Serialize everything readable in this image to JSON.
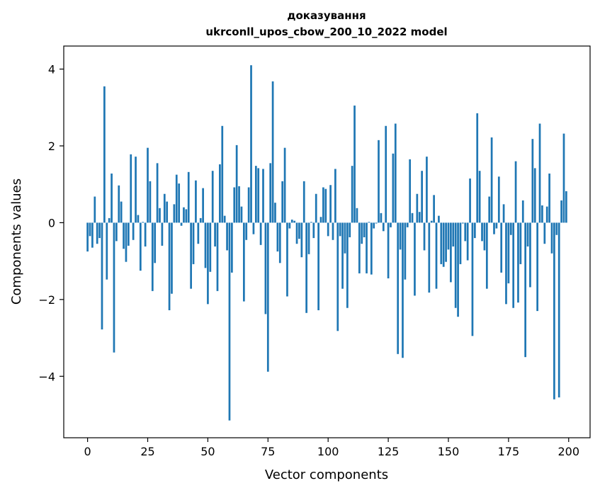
{
  "chart_data": {
    "type": "bar",
    "title": "доказування",
    "subtitle": "ukrconll_upos_cbow_200_10_2022 model",
    "xlabel": "Vector components",
    "ylabel": "Components values",
    "xlim": [
      -9.9,
      208.9
    ],
    "ylim": [
      -5.6,
      4.6
    ],
    "xticks": [
      0,
      25,
      50,
      75,
      100,
      125,
      150,
      175,
      200
    ],
    "xtick_labels": [
      "0",
      "25",
      "50",
      "75",
      "100",
      "125",
      "150",
      "175",
      "200"
    ],
    "yticks": [
      -4,
      -2,
      0,
      2,
      4
    ],
    "ytick_labels": [
      "−4",
      "−2",
      "0",
      "2",
      "4"
    ],
    "bar_color": "#1f77b4",
    "grid": false,
    "x": [
      0,
      1,
      2,
      3,
      4,
      5,
      6,
      7,
      8,
      9,
      10,
      11,
      12,
      13,
      14,
      15,
      16,
      17,
      18,
      19,
      20,
      21,
      22,
      23,
      24,
      25,
      26,
      27,
      28,
      29,
      30,
      31,
      32,
      33,
      34,
      35,
      36,
      37,
      38,
      39,
      40,
      41,
      42,
      43,
      44,
      45,
      46,
      47,
      48,
      49,
      50,
      51,
      52,
      53,
      54,
      55,
      56,
      57,
      58,
      59,
      60,
      61,
      62,
      63,
      64,
      65,
      66,
      67,
      68,
      69,
      70,
      71,
      72,
      73,
      74,
      75,
      76,
      77,
      78,
      79,
      80,
      81,
      82,
      83,
      84,
      85,
      86,
      87,
      88,
      89,
      90,
      91,
      92,
      93,
      94,
      95,
      96,
      97,
      98,
      99,
      100,
      101,
      102,
      103,
      104,
      105,
      106,
      107,
      108,
      109,
      110,
      111,
      112,
      113,
      114,
      115,
      116,
      117,
      118,
      119,
      120,
      121,
      122,
      123,
      124,
      125,
      126,
      127,
      128,
      129,
      130,
      131,
      132,
      133,
      134,
      135,
      136,
      137,
      138,
      139,
      140,
      141,
      142,
      143,
      144,
      145,
      146,
      147,
      148,
      149,
      150,
      151,
      152,
      153,
      154,
      155,
      156,
      157,
      158,
      159,
      160,
      161,
      162,
      163,
      164,
      165,
      166,
      167,
      168,
      169,
      170,
      171,
      172,
      173,
      174,
      175,
      176,
      177,
      178,
      179,
      180,
      181,
      182,
      183,
      184,
      185,
      186,
      187,
      188,
      189,
      190,
      191,
      192,
      193,
      194,
      195,
      196,
      197,
      198,
      199
    ],
    "values": [
      -0.75,
      -0.35,
      -0.65,
      0.68,
      -0.55,
      -0.4,
      -2.78,
      3.55,
      -1.48,
      0.12,
      1.28,
      -3.38,
      -0.48,
      0.97,
      0.55,
      -0.68,
      -1.02,
      -0.6,
      1.78,
      -0.45,
      1.72,
      0.2,
      -1.25,
      0.02,
      -0.62,
      1.95,
      1.08,
      -1.78,
      -1.05,
      1.55,
      0.38,
      -0.6,
      0.75,
      0.55,
      -2.28,
      -1.85,
      0.48,
      1.25,
      1.02,
      -0.08,
      0.4,
      0.35,
      1.32,
      -1.72,
      -1.08,
      1.1,
      -0.55,
      0.12,
      0.9,
      -1.18,
      -2.12,
      -1.28,
      1.35,
      -0.62,
      -1.78,
      1.52,
      2.52,
      0.18,
      -0.72,
      -5.15,
      -1.3,
      0.92,
      2.02,
      0.95,
      0.42,
      -2.05,
      -0.45,
      0.92,
      4.1,
      -0.3,
      1.48,
      1.42,
      -0.58,
      1.4,
      -2.38,
      -3.88,
      1.55,
      3.68,
      0.52,
      -0.75,
      -1.05,
      1.08,
      1.95,
      -1.92,
      -0.15,
      0.08,
      0.05,
      -0.55,
      -0.42,
      -0.9,
      1.08,
      -2.35,
      -0.82,
      0.02,
      -0.4,
      0.75,
      -2.28,
      0.15,
      0.92,
      0.88,
      -0.35,
      0.98,
      -0.45,
      1.4,
      -2.82,
      -0.35,
      -1.72,
      -0.8,
      -2.22,
      -0.38,
      1.48,
      3.05,
      0.38,
      -1.32,
      -0.55,
      -0.38,
      -1.32,
      0.02,
      -1.35,
      -0.15,
      -0.02,
      2.15,
      0.25,
      -0.22,
      2.52,
      -1.45,
      -0.12,
      1.8,
      2.58,
      -3.42,
      -0.7,
      -3.52,
      -1.48,
      -0.12,
      1.65,
      0.25,
      -1.9,
      0.75,
      0.28,
      1.35,
      -0.72,
      1.72,
      -1.82,
      0.05,
      0.72,
      -1.72,
      0.18,
      -1.08,
      -1.15,
      -1.02,
      -0.7,
      -1.55,
      -0.62,
      -2.22,
      -2.45,
      -1.08,
      -0.02,
      -0.48,
      -0.98,
      1.15,
      -2.95,
      -0.4,
      2.85,
      1.35,
      -0.48,
      -0.72,
      -1.72,
      0.68,
      2.22,
      -0.3,
      -0.15,
      1.2,
      -1.3,
      0.48,
      -2.12,
      -1.58,
      -0.32,
      -2.22,
      1.6,
      -2.08,
      -1.08,
      0.58,
      -3.5,
      -0.62,
      -1.68,
      2.18,
      1.42,
      -2.3,
      2.58,
      0.45,
      -0.55,
      0.42,
      1.28,
      -0.8,
      -4.6,
      -0.32,
      -4.55,
      0.58,
      2.32,
      0.82
    ]
  }
}
